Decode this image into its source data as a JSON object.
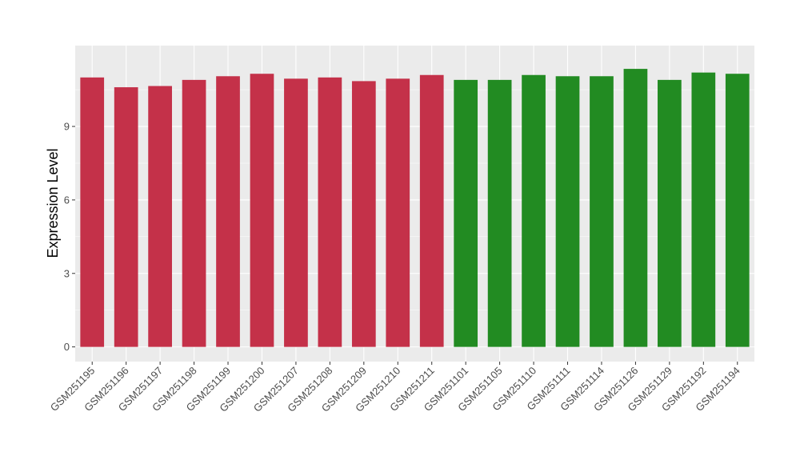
{
  "chart_data": {
    "type": "bar",
    "title": "",
    "xlabel": "",
    "ylabel": "Expression Level",
    "ylim": [
      -0.6,
      12.3
    ],
    "yticks": [
      0,
      3,
      6,
      9
    ],
    "grid": true,
    "legend": "none",
    "categories": [
      "GSM251195",
      "GSM251196",
      "GSM251197",
      "GSM251198",
      "GSM251199",
      "GSM251200",
      "GSM251207",
      "GSM251208",
      "GSM251209",
      "GSM251210",
      "GSM251211",
      "GSM251101",
      "GSM251105",
      "GSM251110",
      "GSM251111",
      "GSM251114",
      "GSM251126",
      "GSM251129",
      "GSM251192",
      "GSM251194"
    ],
    "values": [
      11.0,
      10.6,
      10.65,
      10.9,
      11.05,
      11.15,
      10.95,
      11.0,
      10.85,
      10.95,
      11.1,
      10.9,
      10.9,
      11.1,
      11.05,
      11.05,
      11.35,
      10.9,
      11.2,
      11.15
    ],
    "groups": [
      0,
      0,
      0,
      0,
      0,
      0,
      0,
      0,
      0,
      0,
      0,
      1,
      1,
      1,
      1,
      1,
      1,
      1,
      1,
      1
    ],
    "group_colors": [
      "#c43149",
      "#228b22"
    ]
  },
  "style": {
    "panel_background": "#ebebeb",
    "grid_color": "#ffffff"
  }
}
